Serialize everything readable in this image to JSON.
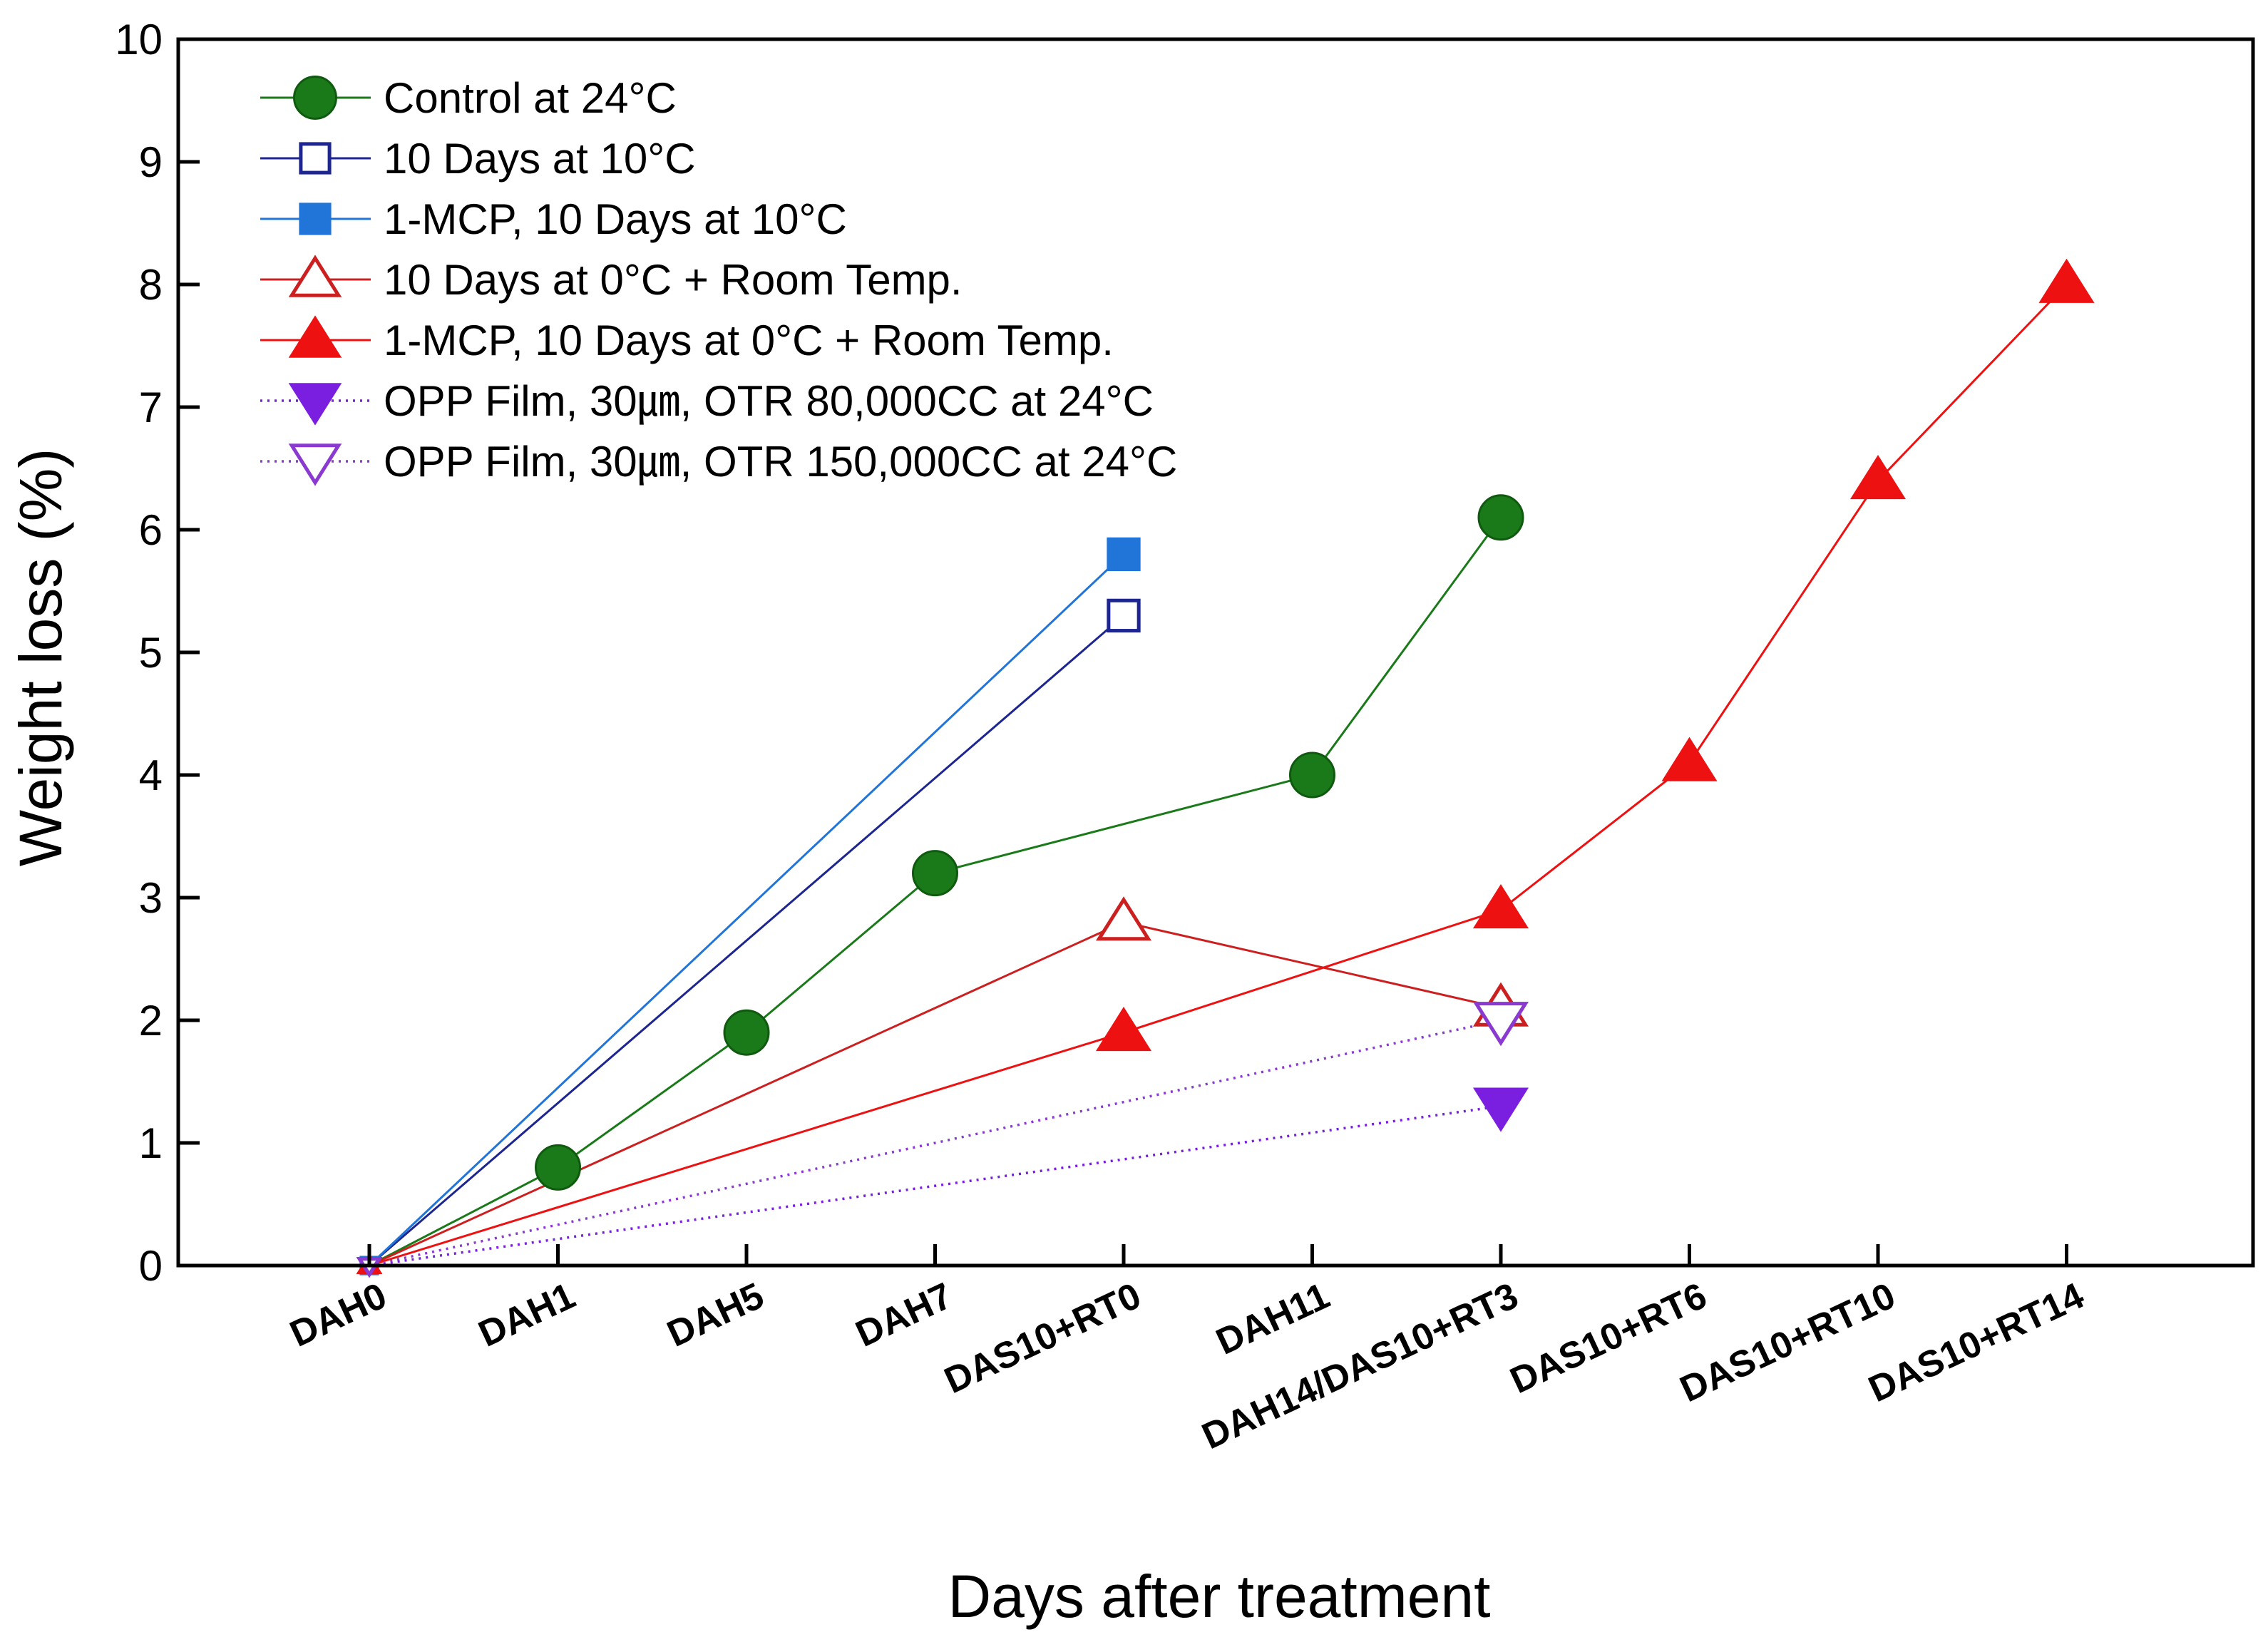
{
  "chart_data": {
    "type": "line",
    "title": "",
    "xlabel": "Days after treatment",
    "ylabel": "Weight loss (%)",
    "ylim": [
      0,
      10
    ],
    "yticks": [
      0,
      1,
      2,
      3,
      4,
      5,
      6,
      7,
      8,
      9,
      10
    ],
    "categories": [
      "DAH0",
      "DAH1",
      "DAH5",
      "DAH7",
      "DAS10+RT0",
      "DAH11",
      "DAH14/DAS10+RT3",
      "DAS10+RT6",
      "DAS10+RT10",
      "DAS10+RT14"
    ],
    "legend_position": "top-left",
    "grid": false,
    "series": [
      {
        "name": "Control at 24°C",
        "color": "#1a7a1a",
        "marker": "circle",
        "fill": "filled",
        "line": "solid",
        "points": [
          [
            0,
            0
          ],
          [
            1,
            0.8
          ],
          [
            2,
            1.9
          ],
          [
            3,
            3.2
          ],
          [
            5,
            4.0
          ],
          [
            6,
            6.1
          ]
        ]
      },
      {
        "name": "10 Days at 10°C",
        "color": "#1c2590",
        "marker": "square",
        "fill": "open",
        "line": "solid",
        "points": [
          [
            0,
            0
          ],
          [
            4,
            5.3
          ]
        ]
      },
      {
        "name": "1-MCP, 10 Days at 10°C",
        "color": "#2275d8",
        "marker": "square",
        "fill": "filled",
        "line": "solid",
        "points": [
          [
            0,
            0
          ],
          [
            4,
            5.8
          ]
        ]
      },
      {
        "name": "10 Days at 0°C + Room Temp.",
        "color": "#cc2020",
        "marker": "triangle-up",
        "fill": "open",
        "line": "solid",
        "points": [
          [
            0,
            0
          ],
          [
            4,
            2.8
          ],
          [
            6,
            2.1
          ]
        ]
      },
      {
        "name": "1-MCP, 10 Days at 0°C + Room Temp.",
        "color": "#ee1111",
        "marker": "triangle-up",
        "fill": "filled",
        "line": "solid",
        "points": [
          [
            0,
            0
          ],
          [
            4,
            1.9
          ],
          [
            6,
            2.9
          ],
          [
            7,
            4.1
          ],
          [
            8,
            6.4
          ],
          [
            9,
            8.0
          ]
        ]
      },
      {
        "name": "OPP Film, 30㎛, OTR 80,000CC at 24°C",
        "color": "#7a1ee0",
        "marker": "triangle-down",
        "fill": "filled",
        "line": "dotted",
        "points": [
          [
            0,
            0
          ],
          [
            6,
            1.3
          ]
        ]
      },
      {
        "name": "OPP Film, 30㎛, OTR 150,000CC at 24°C",
        "color": "#8a3ad0",
        "marker": "triangle-down",
        "fill": "open",
        "line": "dotted",
        "points": [
          [
            0,
            0
          ],
          [
            6,
            2.0
          ]
        ]
      }
    ]
  }
}
